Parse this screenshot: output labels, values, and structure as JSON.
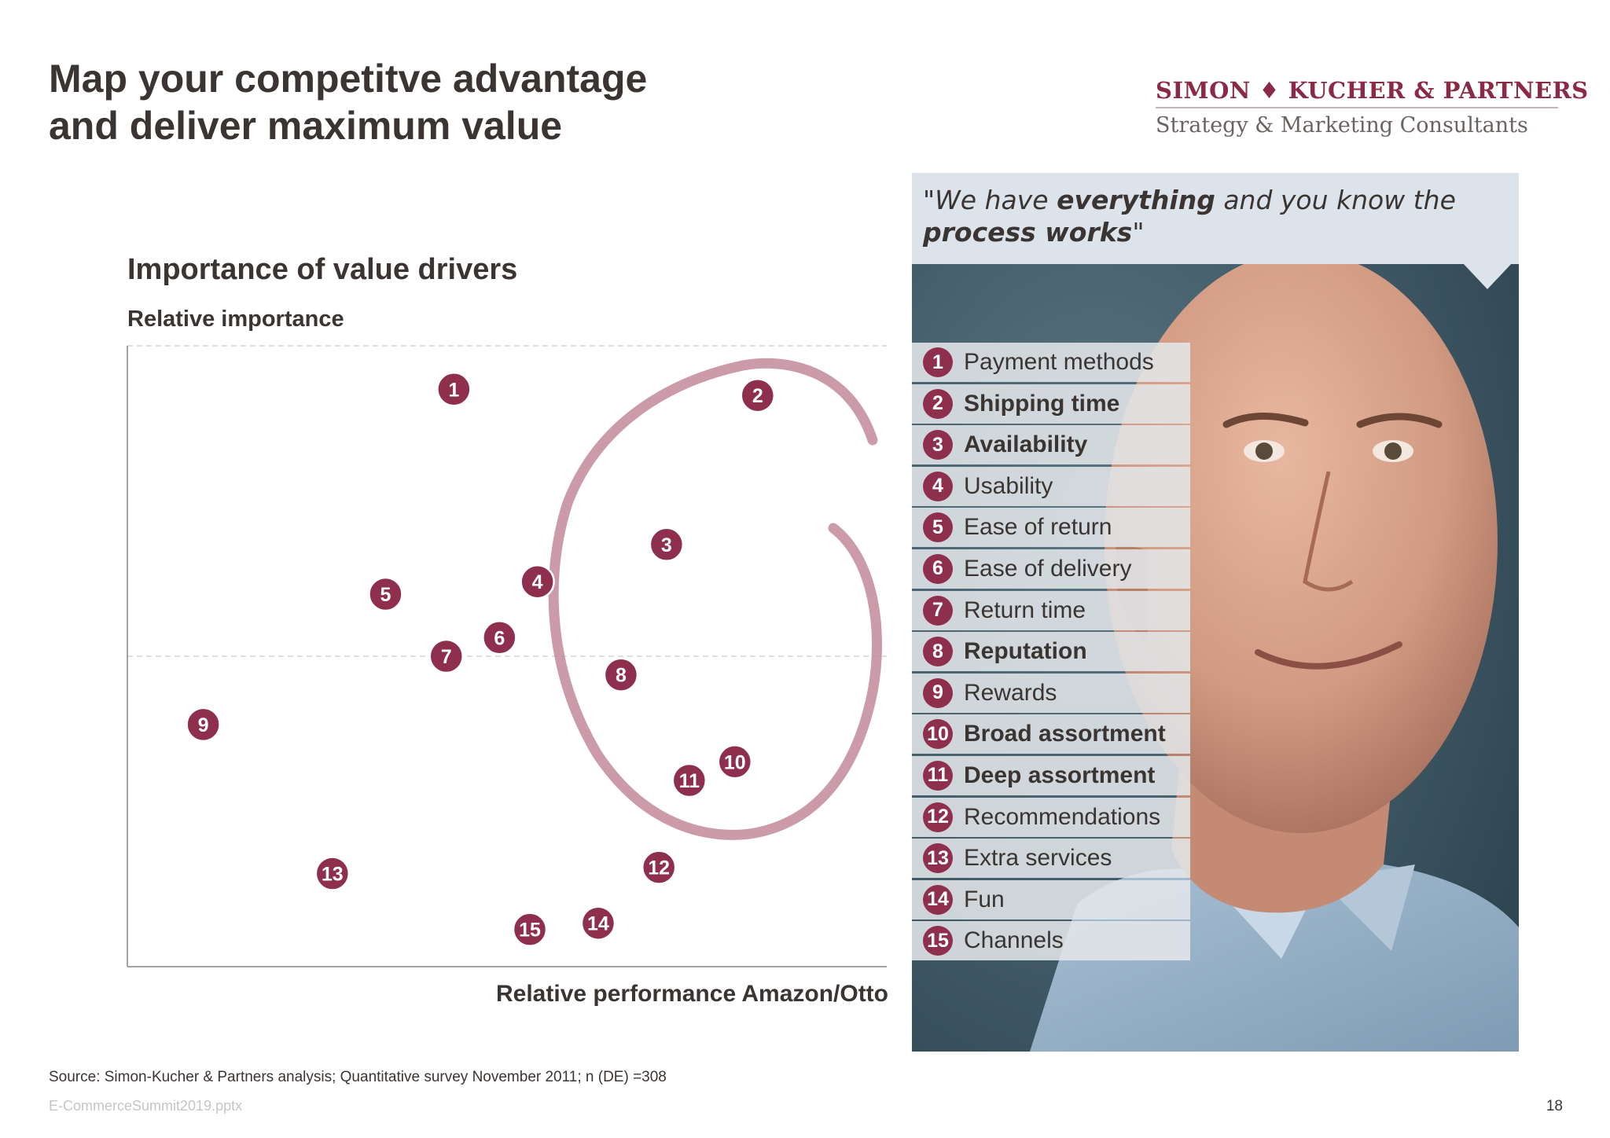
{
  "slide": {
    "title_line1": "Map your competitve advantage",
    "title_line2": "and deliver maximum value",
    "logo_top": "SIMON ♦ KUCHER & PARTNERS",
    "logo_bottom": "Strategy & Marketing Consultants",
    "quote_parts": {
      "p1": "\"We have ",
      "b1": "everything",
      "p2": " and you know the",
      "b2": "process works",
      "p3": "\""
    },
    "source": "Source: Simon-Kucher & Partners analysis; Quantitative survey November 2011; n (DE) =308",
    "file_name": "E-CommerceSummit2019.pptx",
    "page_number": "18"
  },
  "colors": {
    "accent": "#8e2f4d",
    "circle_stroke": "#c28a9a",
    "text": "#3a3532",
    "quote_bg": "#dde3ea"
  },
  "chart_data": {
    "type": "scatter",
    "title": "Importance of value drivers",
    "ylabel": "Relative importance",
    "xlabel": "Relative performance Amazon/Otto",
    "xlim": [
      0,
      100
    ],
    "ylim": [
      0,
      100
    ],
    "grid": false,
    "reference_lines": {
      "y": 50,
      "style": "dashed"
    },
    "highlight": "hand-drawn circle around points 2, 3, 8, 10, 11",
    "points": [
      {
        "id": 1,
        "label": "1",
        "name": "Payment methods",
        "x": 43,
        "y": 93,
        "bold": false
      },
      {
        "id": 2,
        "label": "2",
        "name": "Shipping time",
        "x": 83,
        "y": 92,
        "bold": true
      },
      {
        "id": 3,
        "label": "3",
        "name": "Availability",
        "x": 71,
        "y": 68,
        "bold": true
      },
      {
        "id": 4,
        "label": "4",
        "name": "Usability",
        "x": 54,
        "y": 62,
        "bold": false
      },
      {
        "id": 5,
        "label": "5",
        "name": "Ease of return",
        "x": 34,
        "y": 60,
        "bold": false
      },
      {
        "id": 6,
        "label": "6",
        "name": "Ease of delivery",
        "x": 49,
        "y": 53,
        "bold": false
      },
      {
        "id": 7,
        "label": "7",
        "name": "Return time",
        "x": 42,
        "y": 50,
        "bold": false
      },
      {
        "id": 8,
        "label": "8",
        "name": "Reputation",
        "x": 65,
        "y": 47,
        "bold": true
      },
      {
        "id": 9,
        "label": "9",
        "name": "Rewards",
        "x": 10,
        "y": 39,
        "bold": false
      },
      {
        "id": 10,
        "label": "10",
        "name": "Broad assortment",
        "x": 80,
        "y": 33,
        "bold": true
      },
      {
        "id": 11,
        "label": "11",
        "name": "Deep assortment",
        "x": 74,
        "y": 30,
        "bold": true
      },
      {
        "id": 12,
        "label": "12",
        "name": "Recommendations",
        "x": 70,
        "y": 16,
        "bold": false
      },
      {
        "id": 13,
        "label": "13",
        "name": "Extra services",
        "x": 27,
        "y": 15,
        "bold": false
      },
      {
        "id": 14,
        "label": "14",
        "name": "Fun",
        "x": 62,
        "y": 7,
        "bold": false
      },
      {
        "id": 15,
        "label": "15",
        "name": "Channels",
        "x": 53,
        "y": 6,
        "bold": false
      }
    ]
  }
}
